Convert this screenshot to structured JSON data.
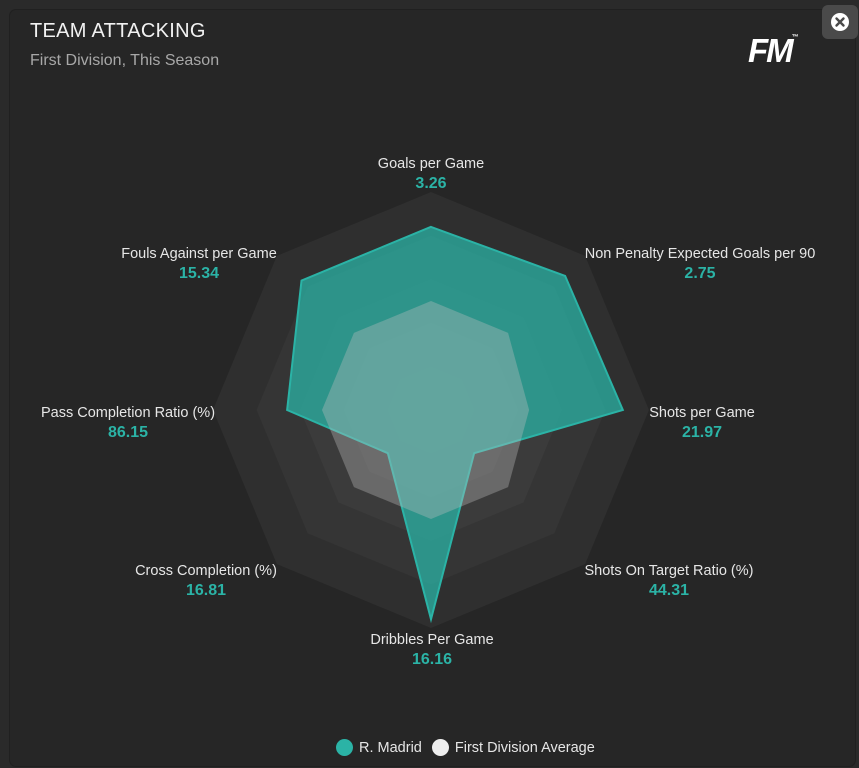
{
  "header": {
    "title": "TEAM ATTACKING",
    "subtitle": "First Division, This Season",
    "logo_text": "FM",
    "logo_mark": "™",
    "close_icon": "close-circle-icon"
  },
  "colors": {
    "team": "#2bb3a6",
    "average": "#eeeeee",
    "ring_dark": "#2e2e2e",
    "ring_light": "#3a3a3a"
  },
  "chart_data": {
    "type": "radar",
    "title": "TEAM ATTACKING",
    "subtitle": "First Division, This Season",
    "axes": [
      {
        "label": "Goals per Game",
        "value": "3.26"
      },
      {
        "label": "Non Penalty Expected Goals per 90",
        "value": "2.75"
      },
      {
        "label": "Shots per Game",
        "value": "21.97"
      },
      {
        "label": "Shots On Target Ratio (%)",
        "value": "44.31"
      },
      {
        "label": "Dribbles Per Game",
        "value": "16.16"
      },
      {
        "label": "Cross Completion (%)",
        "value": "16.81"
      },
      {
        "label": "Pass Completion Ratio (%)",
        "value": "86.15"
      },
      {
        "label": "Fouls Against per Game",
        "value": "15.34"
      }
    ],
    "series": [
      {
        "name": "R. Madrid",
        "normalized": [
          0.84,
          0.87,
          0.88,
          0.28,
          0.96,
          0.28,
          0.66,
          0.84
        ]
      },
      {
        "name": "First Division Average",
        "normalized": [
          0.5,
          0.5,
          0.45,
          0.5,
          0.5,
          0.5,
          0.5,
          0.5
        ]
      }
    ],
    "rings": 5,
    "legend_position": "bottom-center"
  },
  "legend": {
    "team_label": "R. Madrid",
    "average_label": "First Division Average"
  }
}
